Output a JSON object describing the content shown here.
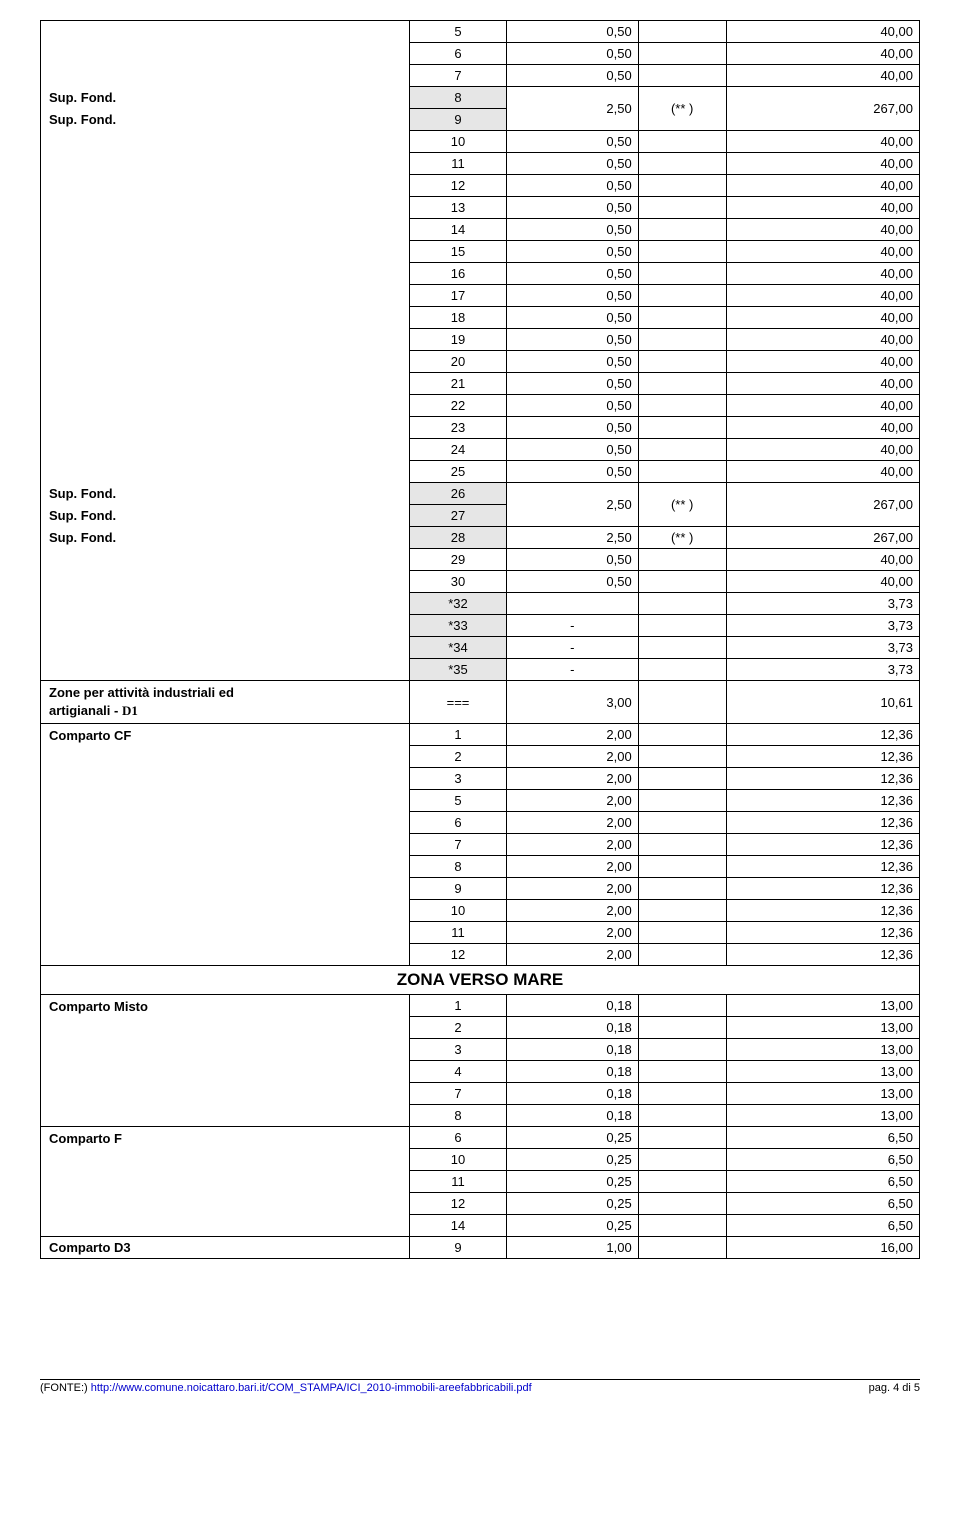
{
  "labels": {
    "supFond": "Sup. Fond.",
    "zoneD1_line1": "Zone  per   attività   industriali   ed",
    "zoneD1_line2_a": "artigianali   - ",
    "zoneD1_line2_b": "D1",
    "compartoCF": "Comparto  CF",
    "zonaVersoMare": "ZONA  VERSO  MARE",
    "compartoMisto": "Comparto Misto",
    "compartoF": "Comparto  F",
    "compartoD3": "Comparto  D3"
  },
  "block1": [
    {
      "n": "5",
      "v": "0,50",
      "a": "40,00"
    },
    {
      "n": "6",
      "v": "0,50",
      "a": "40,00"
    },
    {
      "n": "7",
      "v": "0,50",
      "a": "40,00"
    }
  ],
  "merge1": {
    "n1": "8",
    "n2": "9",
    "v": "2,50",
    "star": "(** )",
    "a": "267,00"
  },
  "block2": [
    {
      "n": "10",
      "v": "0,50",
      "a": "40,00"
    },
    {
      "n": "11",
      "v": "0,50",
      "a": "40,00"
    },
    {
      "n": "12",
      "v": "0,50",
      "a": "40,00"
    },
    {
      "n": "13",
      "v": "0,50",
      "a": "40,00"
    },
    {
      "n": "14",
      "v": "0,50",
      "a": "40,00"
    },
    {
      "n": "15",
      "v": "0,50",
      "a": "40,00"
    },
    {
      "n": "16",
      "v": "0,50",
      "a": "40,00"
    },
    {
      "n": "17",
      "v": "0,50",
      "a": "40,00"
    },
    {
      "n": "18",
      "v": "0,50",
      "a": "40,00"
    },
    {
      "n": "19",
      "v": "0,50",
      "a": "40,00"
    },
    {
      "n": "20",
      "v": "0,50",
      "a": "40,00"
    },
    {
      "n": "21",
      "v": "0,50",
      "a": "40,00"
    },
    {
      "n": "22",
      "v": "0,50",
      "a": "40,00"
    },
    {
      "n": "23",
      "v": "0,50",
      "a": "40,00"
    },
    {
      "n": "24",
      "v": "0,50",
      "a": "40,00"
    },
    {
      "n": "25",
      "v": "0,50",
      "a": "40,00"
    }
  ],
  "merge2": {
    "n1": "26",
    "n2": "27",
    "v": "2,50",
    "star": "(** )",
    "a": "267,00"
  },
  "row28": {
    "n": "28",
    "v": "2,50",
    "star": "(** )",
    "a": "267,00"
  },
  "block3": [
    {
      "n": "29",
      "v": "0,50",
      "a": "40,00"
    },
    {
      "n": "30",
      "v": "0,50",
      "a": "40,00"
    }
  ],
  "starRows": [
    {
      "n": "*32",
      "v": "",
      "a": "3,73"
    },
    {
      "n": "*33",
      "v": "-",
      "a": "3,73"
    },
    {
      "n": "*34",
      "v": "-",
      "a": "3,73"
    },
    {
      "n": "*35",
      "v": "-",
      "a": "3,73"
    }
  ],
  "zoneRow": {
    "n": "===",
    "v": "3,00",
    "a": "10,61"
  },
  "cfRows": [
    {
      "n": "1",
      "v": "2,00",
      "a": "12,36"
    },
    {
      "n": "2",
      "v": "2,00",
      "a": "12,36"
    },
    {
      "n": "3",
      "v": "2,00",
      "a": "12,36"
    },
    {
      "n": "5",
      "v": "2,00",
      "a": "12,36"
    },
    {
      "n": "6",
      "v": "2,00",
      "a": "12,36"
    },
    {
      "n": "7",
      "v": "2,00",
      "a": "12,36"
    },
    {
      "n": "8",
      "v": "2,00",
      "a": "12,36"
    },
    {
      "n": "9",
      "v": "2,00",
      "a": "12,36"
    },
    {
      "n": "10",
      "v": "2,00",
      "a": "12,36"
    },
    {
      "n": "11",
      "v": "2,00",
      "a": "12,36"
    },
    {
      "n": "12",
      "v": "2,00",
      "a": "12,36"
    }
  ],
  "mistoRows": [
    {
      "n": "1",
      "v": "0,18",
      "a": "13,00"
    },
    {
      "n": "2",
      "v": "0,18",
      "a": "13,00"
    },
    {
      "n": "3",
      "v": "0,18",
      "a": "13,00"
    },
    {
      "n": "4",
      "v": "0,18",
      "a": "13,00"
    },
    {
      "n": "7",
      "v": "0,18",
      "a": "13,00"
    },
    {
      "n": "8",
      "v": "0,18",
      "a": "13,00"
    }
  ],
  "fRows": [
    {
      "n": "6",
      "v": "0,25",
      "a": "6,50"
    },
    {
      "n": "10",
      "v": "0,25",
      "a": "6,50"
    },
    {
      "n": "11",
      "v": "0,25",
      "a": "6,50"
    },
    {
      "n": "12",
      "v": "0,25",
      "a": "6,50"
    },
    {
      "n": "14",
      "v": "0,25",
      "a": "6,50"
    }
  ],
  "d3Row": {
    "n": "9",
    "v": "1,00",
    "a": "16,00"
  },
  "footer": {
    "fonte": "(FONTE:) ",
    "url": "http://www.comune.noicattaro.bari.it/COM_STAMPA/ICI_2010-immobili-areefabbricabili.pdf",
    "page": "pag. 4 di 5"
  }
}
